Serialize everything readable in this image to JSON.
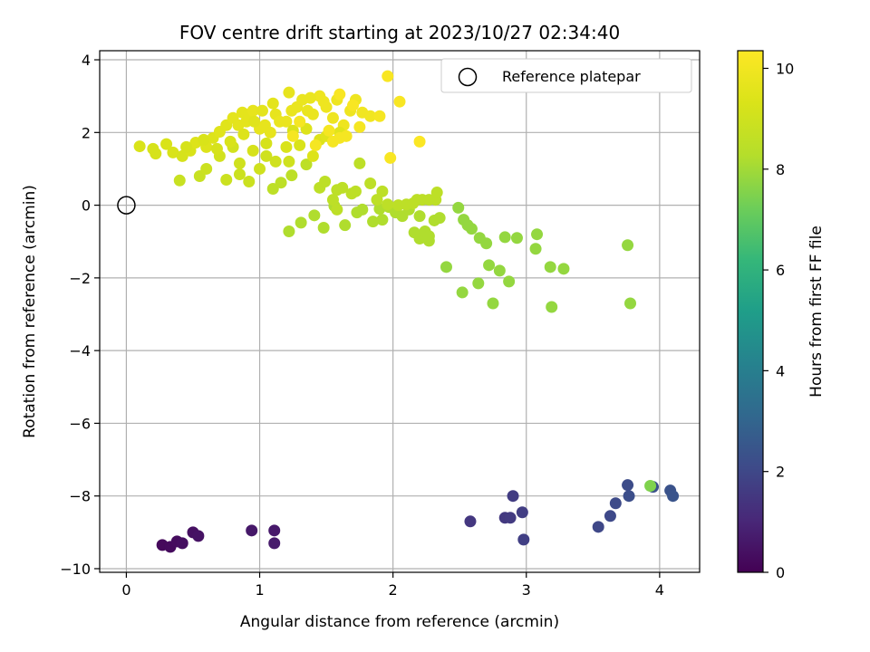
{
  "chart_data": {
    "type": "scatter",
    "title": "FOV centre drift starting at 2023/10/27 02:34:40",
    "xlabel": "Angular distance from reference (arcmin)",
    "ylabel": "Rotation from reference (arcmin)",
    "colorbar_label": "Hours from first FF file",
    "xlim": [
      -0.2,
      4.3
    ],
    "ylim": [
      -10.1,
      4.25
    ],
    "xticks": [
      0,
      1,
      2,
      3,
      4
    ],
    "xtick_labels": [
      "0",
      "1",
      "2",
      "3",
      "4"
    ],
    "yticks": [
      -10,
      -8,
      -6,
      -4,
      -2,
      0,
      2,
      4
    ],
    "ytick_labels": [
      "−10",
      "−8",
      "−6",
      "−4",
      "−2",
      "0",
      "2",
      "4"
    ],
    "colorbar_range": [
      0,
      10.35
    ],
    "colorbar_ticks": [
      0,
      2,
      4,
      6,
      8,
      10
    ],
    "colorbar_tick_labels": [
      "0",
      "2",
      "4",
      "6",
      "8",
      "10"
    ],
    "colormap": "viridis",
    "grid": true,
    "legend": {
      "position": "top-right",
      "entries": [
        "Reference platepar"
      ]
    },
    "reference_point": {
      "x": 0,
      "y": 0,
      "label": "Reference platepar"
    },
    "points": [
      [
        0.27,
        -9.35,
        0.2
      ],
      [
        0.33,
        -9.4,
        0.25
      ],
      [
        0.38,
        -9.25,
        0.3
      ],
      [
        0.42,
        -9.3,
        0.35
      ],
      [
        0.5,
        -9.0,
        0.4
      ],
      [
        0.54,
        -9.1,
        0.45
      ],
      [
        0.94,
        -8.95,
        0.6
      ],
      [
        1.11,
        -8.95,
        0.65
      ],
      [
        1.11,
        -9.3,
        0.7
      ],
      [
        2.58,
        -8.7,
        1.5
      ],
      [
        2.84,
        -8.6,
        1.55
      ],
      [
        2.88,
        -8.6,
        1.6
      ],
      [
        2.9,
        -8.0,
        1.65
      ],
      [
        2.97,
        -8.45,
        1.7
      ],
      [
        2.98,
        -9.2,
        1.75
      ],
      [
        3.54,
        -8.85,
        2.0
      ],
      [
        3.63,
        -8.55,
        2.05
      ],
      [
        3.67,
        -8.2,
        2.1
      ],
      [
        3.76,
        -7.7,
        2.15
      ],
      [
        3.77,
        -8.0,
        2.2
      ],
      [
        3.95,
        -7.75,
        2.3
      ],
      [
        4.08,
        -7.85,
        2.35
      ],
      [
        4.1,
        -8.0,
        2.4
      ],
      [
        3.93,
        -7.72,
        7.5
      ],
      [
        2.49,
        -0.07,
        7.8
      ],
      [
        2.53,
        -0.4,
        7.8
      ],
      [
        2.56,
        -0.55,
        7.8
      ],
      [
        2.59,
        -0.65,
        7.8
      ],
      [
        2.65,
        -0.9,
        7.8
      ],
      [
        2.7,
        -1.05,
        7.8
      ],
      [
        2.72,
        -1.65,
        7.8
      ],
      [
        2.75,
        -2.7,
        7.8
      ],
      [
        2.8,
        -1.8,
        7.8
      ],
      [
        2.84,
        -0.88,
        7.8
      ],
      [
        2.87,
        -2.1,
        7.8
      ],
      [
        2.93,
        -0.9,
        7.8
      ],
      [
        3.07,
        -1.2,
        7.8
      ],
      [
        3.08,
        -0.8,
        7.8
      ],
      [
        3.18,
        -1.7,
        7.8
      ],
      [
        3.19,
        -2.8,
        7.8
      ],
      [
        3.28,
        -1.75,
        7.8
      ],
      [
        3.76,
        -1.1,
        7.8
      ],
      [
        3.78,
        -2.7,
        7.8
      ],
      [
        2.64,
        -2.15,
        7.8
      ],
      [
        2.52,
        -2.4,
        7.8
      ],
      [
        2.4,
        -1.7,
        7.8
      ],
      [
        1.22,
        -0.72,
        8.2
      ],
      [
        1.31,
        -0.48,
        8.2
      ],
      [
        1.41,
        -0.28,
        8.2
      ],
      [
        1.48,
        -0.62,
        8.2
      ],
      [
        1.56,
        -0.02,
        8.2
      ],
      [
        1.64,
        -0.55,
        8.2
      ],
      [
        1.73,
        -0.2,
        8.2
      ],
      [
        1.77,
        -0.12,
        8.2
      ],
      [
        1.85,
        -0.45,
        8.2
      ],
      [
        1.92,
        -0.4,
        8.2
      ],
      [
        1.97,
        -0.05,
        8.2
      ],
      [
        2.02,
        -0.2,
        8.2
      ],
      [
        2.07,
        -0.3,
        8.2
      ],
      [
        2.12,
        -0.12,
        8.2
      ],
      [
        2.16,
        -0.75,
        8.2
      ],
      [
        2.2,
        -0.92,
        8.2
      ],
      [
        2.24,
        -0.72,
        8.2
      ],
      [
        2.27,
        -0.98,
        8.2
      ],
      [
        2.31,
        -0.42,
        8.2
      ],
      [
        2.35,
        -0.35,
        8.2
      ],
      [
        2.2,
        -0.3,
        8.2
      ],
      [
        2.0,
        -0.08,
        8.2
      ],
      [
        1.9,
        -0.1,
        8.2
      ],
      [
        2.27,
        -0.85,
        8.2
      ],
      [
        1.1,
        0.45,
        8.5
      ],
      [
        1.16,
        0.62,
        8.5
      ],
      [
        1.24,
        0.82,
        8.5
      ],
      [
        1.35,
        1.12,
        8.5
      ],
      [
        1.45,
        0.48,
        8.5
      ],
      [
        1.49,
        0.65,
        8.5
      ],
      [
        1.55,
        0.15,
        8.5
      ],
      [
        1.58,
        0.42,
        8.5
      ],
      [
        1.62,
        0.48,
        8.5
      ],
      [
        1.69,
        0.32,
        8.5
      ],
      [
        1.72,
        0.38,
        8.5
      ],
      [
        1.75,
        1.15,
        8.5
      ],
      [
        1.83,
        0.6,
        8.5
      ],
      [
        1.88,
        0.15,
        8.5
      ],
      [
        1.92,
        0.38,
        8.5
      ],
      [
        1.96,
        0.02,
        8.5
      ],
      [
        2.04,
        0.0,
        8.5
      ],
      [
        2.1,
        0.02,
        8.5
      ],
      [
        2.15,
        0.05,
        8.5
      ],
      [
        2.18,
        0.15,
        8.5
      ],
      [
        2.22,
        0.15,
        8.5
      ],
      [
        2.27,
        0.15,
        8.5
      ],
      [
        2.32,
        0.15,
        8.5
      ],
      [
        2.33,
        0.35,
        8.5
      ],
      [
        1.58,
        -0.12,
        8.5
      ],
      [
        0.1,
        1.62,
        9.3
      ],
      [
        0.22,
        1.42,
        9.2
      ],
      [
        0.3,
        1.68,
        9.3
      ],
      [
        0.35,
        1.45,
        9.3
      ],
      [
        0.42,
        1.35,
        9.2
      ],
      [
        0.48,
        1.5,
        9.3
      ],
      [
        0.52,
        1.72,
        9.4
      ],
      [
        0.6,
        1.6,
        9.4
      ],
      [
        0.65,
        1.85,
        9.4
      ],
      [
        0.7,
        2.02,
        9.5
      ],
      [
        0.75,
        2.2,
        9.5
      ],
      [
        0.8,
        2.4,
        9.6
      ],
      [
        0.84,
        2.2,
        9.6
      ],
      [
        0.87,
        2.55,
        9.6
      ],
      [
        0.9,
        2.3,
        9.6
      ],
      [
        0.92,
        2.5,
        9.6
      ],
      [
        0.95,
        2.6,
        9.7
      ],
      [
        1.0,
        2.1,
        9.7
      ],
      [
        1.04,
        2.2,
        9.7
      ],
      [
        1.08,
        2.0,
        9.7
      ],
      [
        1.12,
        2.5,
        9.7
      ],
      [
        1.15,
        2.3,
        9.8
      ],
      [
        1.2,
        2.3,
        9.8
      ],
      [
        1.24,
        2.6,
        9.8
      ],
      [
        1.28,
        2.7,
        9.8
      ],
      [
        1.32,
        2.9,
        9.8
      ],
      [
        1.36,
        2.6,
        9.8
      ],
      [
        1.4,
        2.5,
        9.8
      ],
      [
        1.45,
        3.0,
        9.9
      ],
      [
        1.5,
        2.7,
        9.9
      ],
      [
        1.55,
        2.4,
        9.9
      ],
      [
        1.58,
        2.9,
        9.9
      ],
      [
        1.63,
        2.2,
        9.9
      ],
      [
        1.68,
        2.6,
        9.9
      ],
      [
        1.72,
        2.9,
        9.9
      ],
      [
        1.77,
        2.55,
        10.0
      ],
      [
        1.83,
        2.45,
        10.0
      ],
      [
        0.4,
        0.68,
        8.8
      ],
      [
        0.55,
        0.8,
        8.8
      ],
      [
        0.6,
        1.0,
        8.9
      ],
      [
        0.75,
        0.7,
        8.9
      ],
      [
        0.85,
        0.85,
        8.9
      ],
      [
        0.92,
        0.65,
        8.9
      ],
      [
        1.0,
        1.0,
        9.0
      ],
      [
        1.05,
        1.35,
        9.0
      ],
      [
        1.12,
        1.2,
        9.0
      ],
      [
        0.7,
        1.35,
        9.1
      ],
      [
        0.8,
        1.6,
        9.1
      ],
      [
        0.95,
        1.5,
        9.2
      ],
      [
        1.05,
        1.7,
        9.2
      ],
      [
        1.2,
        1.6,
        9.3
      ],
      [
        1.25,
        2.05,
        9.3
      ],
      [
        1.35,
        2.1,
        9.4
      ],
      [
        1.45,
        1.8,
        9.4
      ],
      [
        1.5,
        1.9,
        9.5
      ],
      [
        1.6,
        2.0,
        9.5
      ],
      [
        1.22,
        1.2,
        9.0
      ],
      [
        0.85,
        1.15,
        9.0
      ],
      [
        1.3,
        1.65,
        9.3
      ],
      [
        1.4,
        1.35,
        9.4
      ],
      [
        0.2,
        1.55,
        9.2
      ],
      [
        0.45,
        1.6,
        9.2
      ],
      [
        0.58,
        1.8,
        9.3
      ],
      [
        0.68,
        1.55,
        9.2
      ],
      [
        0.78,
        1.75,
        9.3
      ],
      [
        0.88,
        1.95,
        9.4
      ],
      [
        0.96,
        2.3,
        9.5
      ],
      [
        1.02,
        2.6,
        9.6
      ],
      [
        1.1,
        2.8,
        9.6
      ],
      [
        1.22,
        3.1,
        9.7
      ],
      [
        1.38,
        2.95,
        9.8
      ],
      [
        1.48,
        2.85,
        9.9
      ],
      [
        1.6,
        1.85,
        10.1
      ],
      [
        1.65,
        1.9,
        10.1
      ],
      [
        1.96,
        3.55,
        10.2
      ],
      [
        1.98,
        1.3,
        10.2
      ],
      [
        2.05,
        2.85,
        10.2
      ],
      [
        2.2,
        1.75,
        10.3
      ],
      [
        1.9,
        2.45,
        10.1
      ],
      [
        1.75,
        2.15,
        10.1
      ],
      [
        1.55,
        1.75,
        10.1
      ],
      [
        1.52,
        2.05,
        10.1
      ],
      [
        1.42,
        1.65,
        10.1
      ],
      [
        1.7,
        2.75,
        10.2
      ],
      [
        1.6,
        3.05,
        10.2
      ],
      [
        1.25,
        1.9,
        10.1
      ],
      [
        1.3,
        2.3,
        10.1
      ]
    ]
  }
}
